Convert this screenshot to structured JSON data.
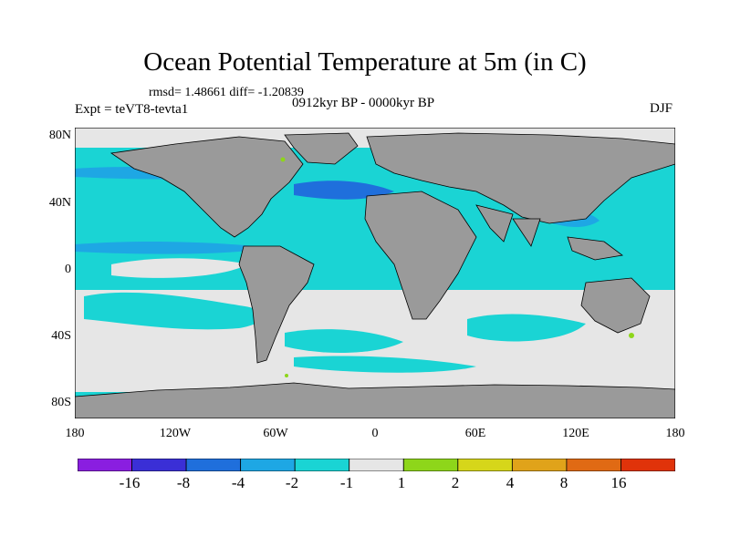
{
  "title": "Ocean Potential Temperature at 5m (in C)",
  "stats": "rmsd= 1.48661 diff= -1.20839",
  "period": "0912kyr BP - 0000kyr BP",
  "expt": "Expt = teVT8-tevta1",
  "season": "DJF",
  "lat_labels": [
    "80N",
    "40N",
    "0",
    "40S",
    "80S"
  ],
  "lon_labels": [
    "180",
    "120W",
    "60W",
    "0",
    "60E",
    "120E",
    "180"
  ],
  "colorbar": {
    "labels": [
      "-16",
      "-8",
      "-4",
      "-2",
      "-1",
      "1",
      "2",
      "4",
      "8",
      "16"
    ],
    "colors": [
      "#8a1ee0",
      "#3a2fd6",
      "#1f6fdc",
      "#1ea7e4",
      "#1ad4d4",
      "#e6e6e6",
      "#8ed61a",
      "#d6d61a",
      "#e0a31a",
      "#e06a14",
      "#e0330a"
    ]
  },
  "map_colors": {
    "land": "#9a9a9a",
    "neutral": "#e6e6e6",
    "cool1": "#1ad4d4",
    "cool2": "#1ea7e4",
    "cool3": "#1f6fdc",
    "warm1": "#8ed61a"
  }
}
